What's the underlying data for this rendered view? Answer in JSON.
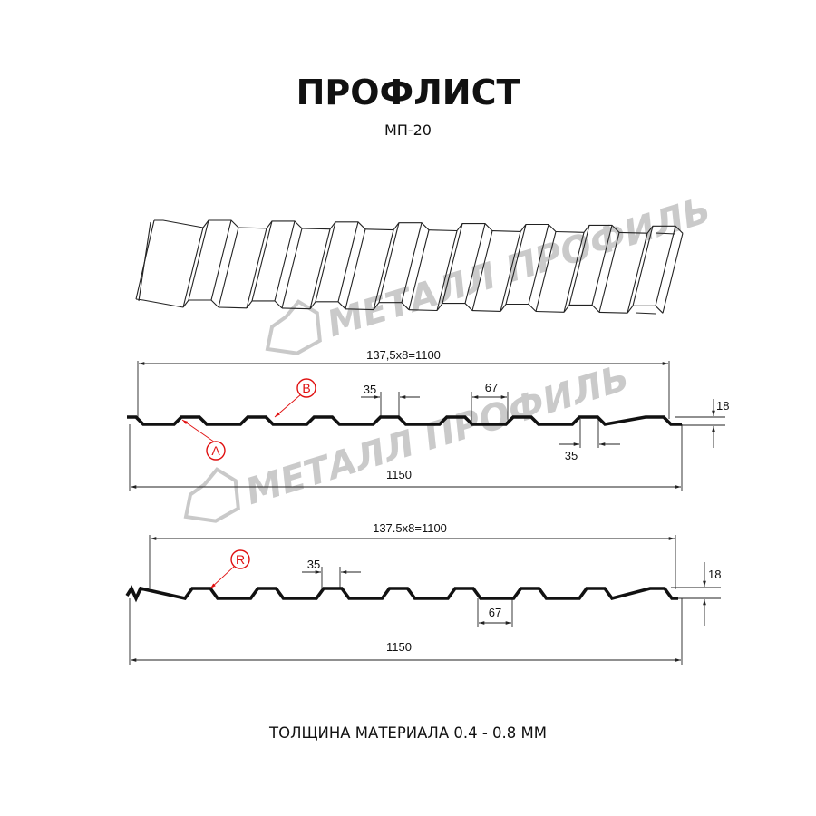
{
  "title": "ПРОФЛИСТ",
  "subtitle": "МП-20",
  "footer": "ТОЛЩИНА МАТЕРИАЛА 0.4 - 0.8 ММ",
  "watermark": "МЕТАЛЛ ПРОФИЛЬ",
  "colors": {
    "marker": "#e01010",
    "line": "#111111",
    "watermark": "#bdbdbd"
  },
  "profile_1": {
    "pitch_dim": "137,5x8=1100",
    "width_dim": "1150",
    "top_dim": "35",
    "bottom_dim": "35",
    "valley_dim": "67",
    "height_dim": "18",
    "markers": [
      "A",
      "B"
    ]
  },
  "profile_2": {
    "pitch_dim": "137.5x8=1100",
    "width_dim": "1150",
    "top_dim": "35",
    "valley_dim": "67",
    "height_dim": "18",
    "markers": [
      "R"
    ]
  }
}
